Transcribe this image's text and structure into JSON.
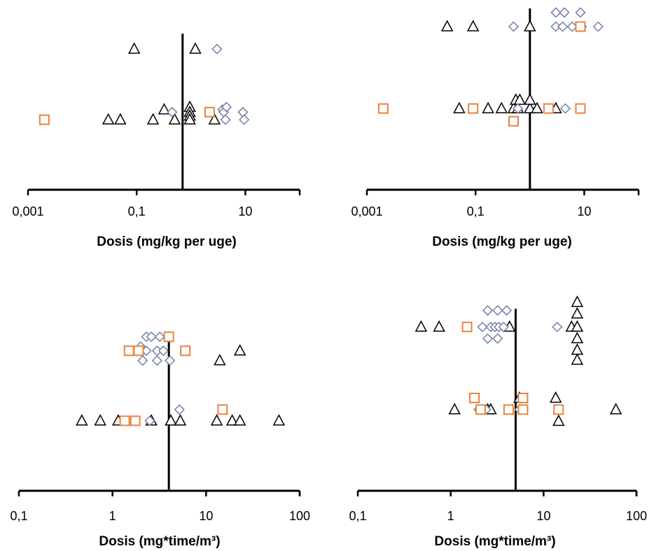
{
  "colors": {
    "triangle": "#000000",
    "diamond": "#6f7fa4",
    "square": "#e8823c",
    "axis": "#000000"
  },
  "chart_data": [
    {
      "type": "scatter",
      "title": "",
      "xlabel": "Dosis (mg/kg per uge)",
      "ylabel": "",
      "xscale": "log",
      "xlim": [
        0.001,
        100
      ],
      "xticks": [
        "0,001",
        "0,1",
        "10"
      ],
      "xtick_values": [
        0.001,
        0.1,
        10
      ],
      "reference_line_x": 0.7,
      "grid": false,
      "series": [
        {
          "marker": "triangle",
          "points": [
            [
              0.09,
              1
            ],
            [
              1.2,
              1
            ],
            [
              0.32,
              0.52
            ],
            [
              0.95,
              0.54
            ],
            [
              0.95,
              0.5
            ],
            [
              0.95,
              0.47
            ],
            [
              0.03,
              0.44
            ],
            [
              0.05,
              0.44
            ],
            [
              0.2,
              0.44
            ],
            [
              0.5,
              0.44
            ],
            [
              0.95,
              0.44
            ],
            [
              2.7,
              0.44
            ]
          ]
        },
        {
          "marker": "diamond",
          "points": [
            [
              3,
              1
            ],
            [
              0.45,
              0.5
            ],
            [
              3.8,
              0.52
            ],
            [
              4,
              0.5
            ],
            [
              9,
              0.5
            ],
            [
              4.3,
              0.44
            ],
            [
              9.5,
              0.44
            ],
            [
              4.5,
              0.54
            ]
          ]
        },
        {
          "marker": "square",
          "points": [
            [
              0.002,
              0.44
            ],
            [
              2.2,
              0.5
            ]
          ]
        }
      ]
    },
    {
      "type": "scatter",
      "title": "",
      "xlabel": "Dosis (mg/kg per uge)",
      "ylabel": "",
      "xscale": "log",
      "xlim": [
        0.001,
        100
      ],
      "xticks": [
        "0,001",
        "0,1",
        "10"
      ],
      "xtick_values": [
        0.001,
        0.1,
        10
      ],
      "reference_line_x": 1,
      "grid": false,
      "series": [
        {
          "marker": "triangle",
          "points": [
            [
              0.03,
              1
            ],
            [
              0.09,
              1
            ],
            [
              1,
              1
            ],
            [
              0.05,
              0.42
            ],
            [
              0.17,
              0.42
            ],
            [
              0.3,
              0.42
            ],
            [
              0.5,
              0.42
            ],
            [
              0.6,
              0.42
            ],
            [
              1,
              0.42
            ],
            [
              1.35,
              0.42
            ],
            [
              3,
              0.42
            ],
            [
              0.55,
              0.48
            ],
            [
              0.65,
              0.48
            ],
            [
              1,
              0.48
            ]
          ]
        },
        {
          "marker": "diamond",
          "points": [
            [
              0.5,
              1
            ],
            [
              3,
              1
            ],
            [
              4,
              1
            ],
            [
              6,
              1
            ],
            [
              9,
              1
            ],
            [
              18,
              1
            ],
            [
              3,
              1.1
            ],
            [
              4.3,
              1.1
            ],
            [
              8.5,
              1.1
            ],
            [
              0.6,
              0.42
            ],
            [
              4.5,
              0.42
            ]
          ]
        },
        {
          "marker": "square",
          "points": [
            [
              0.002,
              0.42
            ],
            [
              0.09,
              0.42
            ],
            [
              2.2,
              0.42
            ],
            [
              8.5,
              0.42
            ],
            [
              0.5,
              0.33
            ],
            [
              8.5,
              1
            ]
          ]
        }
      ]
    },
    {
      "type": "scatter",
      "title": "",
      "xlabel": "Dosis (mg*time/m³)",
      "ylabel": "",
      "xscale": "log",
      "xlim": [
        0.1,
        100
      ],
      "xticks": [
        "0,1",
        "1",
        "10",
        "100"
      ],
      "xtick_values": [
        0.1,
        1,
        10,
        100
      ],
      "reference_line_x": 4,
      "grid": false,
      "series": [
        {
          "marker": "triangle",
          "points": [
            [
              14,
              0.93
            ],
            [
              23,
              1
            ],
            [
              0.47,
              0.5
            ],
            [
              0.74,
              0.5
            ],
            [
              1.15,
              0.5
            ],
            [
              2.6,
              0.5
            ],
            [
              4.2,
              0.5
            ],
            [
              5.3,
              0.5
            ],
            [
              13,
              0.5
            ],
            [
              19,
              0.5
            ],
            [
              23,
              0.5
            ],
            [
              60,
              0.5
            ]
          ]
        },
        {
          "marker": "diamond",
          "points": [
            [
              2.3,
              1.1
            ],
            [
              2.6,
              1.1
            ],
            [
              3.2,
              1.1
            ],
            [
              4,
              1.1
            ],
            [
              2,
              1.03
            ],
            [
              2.3,
              1
            ],
            [
              3,
              1
            ],
            [
              3.5,
              1
            ],
            [
              2.1,
              0.93
            ],
            [
              3,
              0.93
            ],
            [
              4.1,
              0.93
            ],
            [
              5.2,
              0.58
            ],
            [
              2.5,
              0.5
            ]
          ]
        },
        {
          "marker": "square",
          "points": [
            [
              4,
              1.1
            ],
            [
              1.5,
              1
            ],
            [
              1.9,
              1
            ],
            [
              6,
              1
            ],
            [
              1.35,
              0.5
            ],
            [
              1.75,
              0.5
            ],
            [
              15,
              0.58
            ]
          ]
        }
      ]
    },
    {
      "type": "scatter",
      "title": "",
      "xlabel": "Dosis (mg*time/m³)",
      "ylabel": "",
      "xscale": "log",
      "xlim": [
        0.1,
        100
      ],
      "xticks": [
        "0,1",
        "1",
        "10",
        "100"
      ],
      "xtick_values": [
        0.1,
        1,
        10,
        100
      ],
      "reference_line_x": 5,
      "grid": false,
      "series": [
        {
          "marker": "triangle",
          "points": [
            [
              0.48,
              1
            ],
            [
              0.75,
              1
            ],
            [
              4.3,
              1
            ],
            [
              20,
              1
            ],
            [
              23,
              1.15
            ],
            [
              23,
              1.08
            ],
            [
              23,
              1
            ],
            [
              23,
              0.93
            ],
            [
              23,
              0.86
            ],
            [
              23,
              0.8
            ],
            [
              5.5,
              0.57
            ],
            [
              13.5,
              0.57
            ],
            [
              1.1,
              0.5
            ],
            [
              2.5,
              0.5
            ],
            [
              2.7,
              0.5
            ],
            [
              60,
              0.5
            ],
            [
              14.5,
              0.43
            ]
          ]
        },
        {
          "marker": "diamond",
          "points": [
            [
              2.5,
              1.1
            ],
            [
              3.2,
              1.1
            ],
            [
              4,
              1.1
            ],
            [
              2.2,
              1
            ],
            [
              2.7,
              1
            ],
            [
              3,
              1
            ],
            [
              3.3,
              1
            ],
            [
              3.7,
              1
            ],
            [
              14,
              1
            ],
            [
              2.5,
              0.93
            ],
            [
              3.2,
              0.93
            ],
            [
              2,
              0.5
            ],
            [
              2.4,
              0.5
            ],
            [
              5.5,
              0.5
            ]
          ]
        },
        {
          "marker": "square",
          "points": [
            [
              1.5,
              1
            ],
            [
              1.8,
              0.57
            ],
            [
              6,
              0.57
            ],
            [
              2.1,
              0.5
            ],
            [
              4.2,
              0.5
            ],
            [
              6,
              0.5
            ],
            [
              14.5,
              0.5
            ]
          ]
        }
      ]
    }
  ]
}
